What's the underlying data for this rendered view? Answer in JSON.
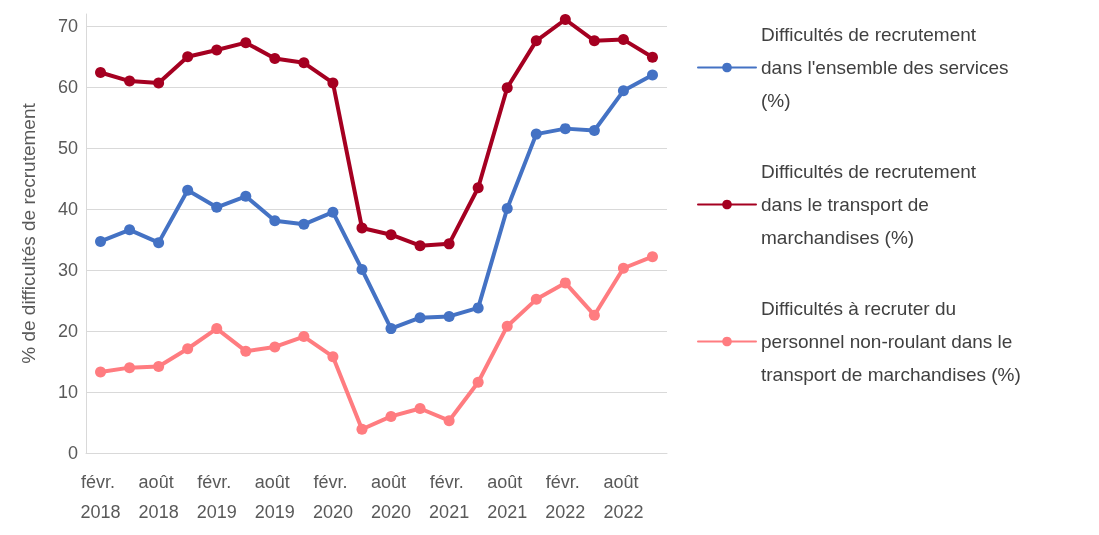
{
  "chart_data": {
    "type": "line",
    "ylabel": "% de difficultés de recrutement",
    "categories": [
      "févr. 2018",
      null,
      "août 2018",
      null,
      "févr. 2019",
      null,
      "août 2019",
      null,
      "févr. 2020",
      null,
      "août 2020",
      null,
      "févr. 2021",
      null,
      "août 2021",
      null,
      "févr. 2022",
      null,
      "août 2022",
      null
    ],
    "series": [
      {
        "name": "Difficultés de recrutement dans l'ensemble des services (%)",
        "color": "#4472c4",
        "values": [
          34.7,
          36.6,
          34.5,
          43.1,
          40.3,
          42.1,
          38.1,
          37.5,
          39.5,
          30.1,
          20.4,
          22.2,
          22.4,
          23.8,
          40.1,
          52.3,
          53.2,
          52.9,
          59.4,
          62.0
        ]
      },
      {
        "name": "Difficultés de recrutement dans le transport de marchandises (%)",
        "color": "#a50021",
        "values": [
          62.4,
          61.0,
          60.7,
          65.0,
          66.1,
          67.3,
          64.7,
          64.0,
          60.7,
          36.9,
          35.8,
          34.0,
          34.3,
          43.5,
          59.9,
          67.6,
          71.1,
          67.6,
          67.8,
          64.9
        ]
      },
      {
        "name": "Difficultés à recruter du personnel non-roulant dans le transport de marchandises (%)",
        "color": "#ff7c80",
        "values": [
          13.3,
          14.0,
          14.2,
          17.1,
          20.4,
          16.7,
          17.4,
          19.1,
          15.8,
          3.9,
          6.0,
          7.3,
          5.3,
          11.6,
          20.8,
          25.2,
          27.9,
          22.6,
          30.3,
          32.2
        ]
      }
    ],
    "ylim": [
      0,
      72
    ],
    "yticks": [
      0,
      10,
      20,
      30,
      40,
      50,
      60,
      70
    ],
    "grid": "y",
    "legend": "right",
    "marker": "circle",
    "line_style": "solid"
  }
}
